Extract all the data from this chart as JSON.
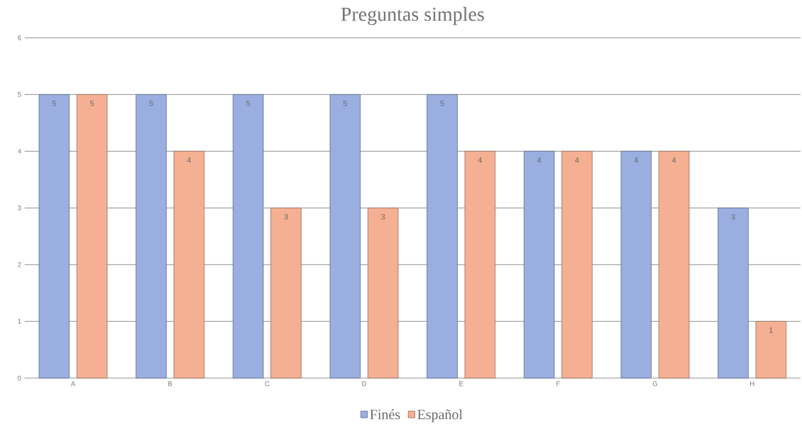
{
  "chart_data": {
    "type": "bar",
    "title": "Preguntas simples",
    "categories": [
      "A",
      "B",
      "C",
      "D",
      "E",
      "F",
      "G",
      "H"
    ],
    "series": [
      {
        "name": "Finés",
        "color": "#9aafe0",
        "values": [
          5,
          5,
          5,
          5,
          5,
          4,
          4,
          3
        ]
      },
      {
        "name": "Español",
        "color": "#f5b093",
        "values": [
          5,
          4,
          3,
          3,
          4,
          4,
          4,
          1
        ]
      }
    ],
    "ylim": [
      0,
      6
    ],
    "yticks": [
      0,
      1,
      2,
      3,
      4,
      5,
      6
    ],
    "grid": "y",
    "legend": "bottom",
    "data_labels": true
  }
}
